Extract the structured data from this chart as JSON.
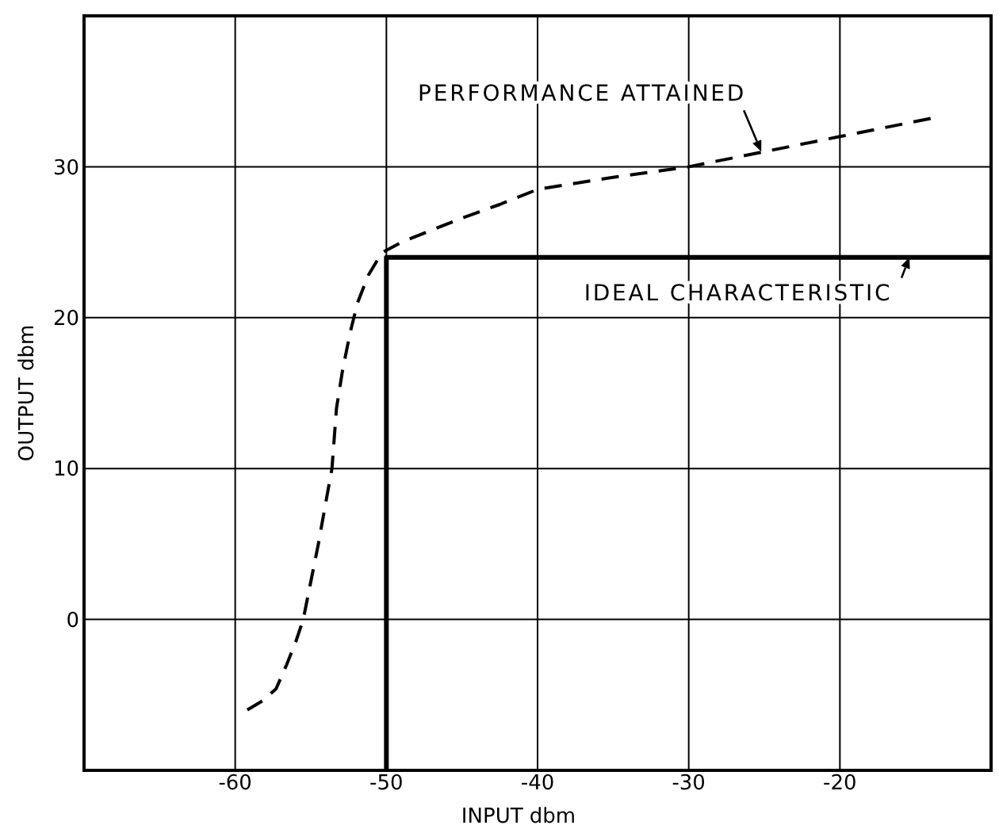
{
  "chart_data": {
    "type": "line",
    "xlabel": "INPUT dbm",
    "ylabel": "OUTPUT dbm",
    "xlim": [
      -70,
      -10
    ],
    "xticks": [
      -60,
      -50,
      -40,
      -30,
      -20
    ],
    "ylim": [
      -10,
      40
    ],
    "yticks": [
      0,
      10,
      20,
      30
    ],
    "grid": true,
    "marker": "none",
    "series": [
      {
        "color": "#000000",
        "line_style": "dashed",
        "x": [
          -59.2,
          -58.2,
          -57.3,
          -56.6,
          -56.0,
          -55.5,
          -55.0,
          -54.5,
          -54.0,
          -53.6,
          -53.3,
          -52.9,
          -52.4,
          -51.9,
          -51.2,
          -50.3,
          -49.0,
          -47.5,
          -45.0,
          -42.5,
          -40.0,
          -35.0,
          -30.0,
          -25.0,
          -20.0,
          -14.0
        ],
        "values": [
          -6.0,
          -5.4,
          -4.6,
          -3.0,
          -1.5,
          0,
          2.5,
          5,
          7.8,
          10,
          14,
          16.5,
          19,
          21,
          22.8,
          24.3,
          25,
          25.6,
          26.6,
          27.5,
          28.5,
          29.3,
          30,
          31,
          32,
          33.2
        ]
      },
      {
        "color": "#000000",
        "line_style": "solid",
        "x": [
          -50,
          -50,
          -10
        ],
        "values": [
          -10,
          24,
          24
        ]
      }
    ],
    "annotations": [
      {
        "text": "PERFORMANCE ATTAINED",
        "x": -25.2,
        "y": 31
      },
      {
        "text": "IDEAL CHARACTERISTIC",
        "x": -15.4,
        "y": 24
      }
    ]
  }
}
